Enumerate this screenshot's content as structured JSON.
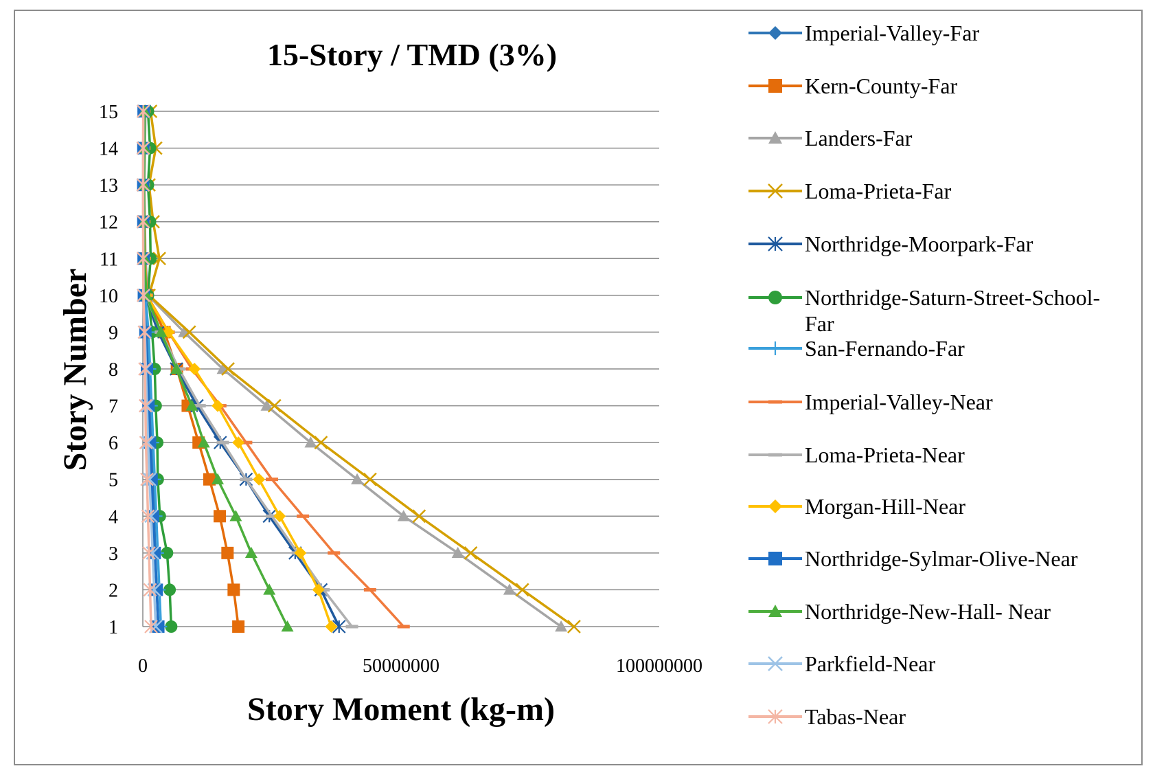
{
  "chart_data": {
    "type": "line",
    "title": "15-Story / TMD (3%)",
    "xlabel": "Story Moment (kg-m)",
    "ylabel": "Story Number",
    "xlim": [
      0,
      100000000
    ],
    "ylim": [
      1,
      15
    ],
    "x_ticks": [
      "0",
      "50000000",
      "100000000"
    ],
    "y_ticks": [
      "1",
      "2",
      "3",
      "4",
      "5",
      "6",
      "7",
      "8",
      "9",
      "10",
      "11",
      "12",
      "13",
      "14",
      "15"
    ],
    "stories": [
      1,
      2,
      3,
      4,
      5,
      6,
      7,
      8,
      9,
      10,
      11,
      12,
      13,
      14,
      15
    ],
    "grid": "horizontal",
    "legend_position": "right",
    "series": [
      {
        "name": "Imperial-Valley-Far",
        "color": "#2e75b6",
        "marker": "diamond",
        "values": [
          3000000,
          2700000,
          2400000,
          2200000,
          2000000,
          1700000,
          1500000,
          1200000,
          900000,
          300000,
          150000,
          100000,
          80000,
          100000,
          120000
        ]
      },
      {
        "name": "Kern-County-Far",
        "color": "#e46c0a",
        "marker": "square",
        "values": [
          18500000,
          17600000,
          16400000,
          14900000,
          12900000,
          10800000,
          8700000,
          6600000,
          4200000,
          900000,
          300000,
          200000,
          150000,
          200000,
          200000
        ]
      },
      {
        "name": "Landers-Far",
        "color": "#a5a5a5",
        "marker": "triangle",
        "values": [
          81000000,
          71000000,
          61000000,
          50500000,
          41500000,
          32500000,
          24000000,
          15500000,
          8000000,
          1000000,
          500000,
          400000,
          300000,
          400000,
          500000
        ]
      },
      {
        "name": "Loma-Prieta-Far",
        "color": "#d4a000",
        "marker": "x",
        "values": [
          83500000,
          73500000,
          63500000,
          53500000,
          44000000,
          34500000,
          25500000,
          16500000,
          9000000,
          1200000,
          3200000,
          2000000,
          1200000,
          2500000,
          1500000
        ]
      },
      {
        "name": "Northridge-Moorpark-Far",
        "color": "#1f5a9e",
        "marker": "asterisk",
        "values": [
          38000000,
          34500000,
          29500000,
          24500000,
          20000000,
          15000000,
          10500000,
          6500000,
          3000000,
          400000,
          200000,
          150000,
          100000,
          200000,
          300000
        ]
      },
      {
        "name": "Northridge-Saturn-Street-School-Far",
        "color": "#2e9e3a",
        "marker": "circle",
        "values": [
          5500000,
          5200000,
          4700000,
          3300000,
          2900000,
          2800000,
          2500000,
          2300000,
          1800000,
          1000000,
          1500000,
          1400000,
          1000000,
          1400000,
          1000000
        ]
      },
      {
        "name": "San-Fernando-Far",
        "color": "#3aa0dc",
        "marker": "plus",
        "values": [
          3500000,
          3200000,
          2900000,
          2600000,
          2300000,
          2000000,
          1700000,
          1400000,
          1100000,
          500000,
          300000,
          200000,
          200000,
          200000,
          200000
        ]
      },
      {
        "name": "Imperial-Valley-Near",
        "color": "#f07a3c",
        "marker": "dash",
        "values": [
          50500000,
          44000000,
          37000000,
          31000000,
          25000000,
          20000000,
          15000000,
          9500000,
          5000000,
          800000,
          400000,
          300000,
          200000,
          300000,
          300000
        ]
      },
      {
        "name": "Loma-Prieta-Near",
        "color": "#b0b0b0",
        "marker": "dash",
        "values": [
          40500000,
          35000000,
          30000000,
          25000000,
          20000000,
          15500000,
          11000000,
          7000000,
          3500000,
          600000,
          300000,
          200000,
          150000,
          200000,
          200000
        ]
      },
      {
        "name": "Morgan-Hill-Near",
        "color": "#ffc000",
        "marker": "diamond",
        "values": [
          36500000,
          34000000,
          30500000,
          26500000,
          22500000,
          18500000,
          14500000,
          10000000,
          5000000,
          700000,
          350000,
          250000,
          200000,
          250000,
          250000
        ]
      },
      {
        "name": "Northridge-Sylmar-Olive-Near",
        "color": "#1f6fc6",
        "marker": "square",
        "values": [
          3000000,
          2700000,
          2300000,
          2000000,
          1700000,
          1400000,
          1100000,
          800000,
          500000,
          200000,
          150000,
          100000,
          80000,
          100000,
          150000
        ]
      },
      {
        "name": "Northridge-New-Hall- Near",
        "color": "#4cae3c",
        "marker": "triangle",
        "values": [
          28000000,
          24500000,
          21000000,
          18000000,
          14500000,
          11800000,
          9500000,
          6500000,
          3500000,
          700000,
          300000,
          250000,
          200000,
          300000,
          300000
        ]
      },
      {
        "name": "Parkfield-Near",
        "color": "#9dc3e6",
        "marker": "x",
        "values": [
          2500000,
          2200000,
          1900000,
          1600000,
          1300000,
          1000000,
          800000,
          600000,
          400000,
          150000,
          100000,
          80000,
          60000,
          80000,
          100000
        ]
      },
      {
        "name": "Tabas-Near",
        "color": "#f4b6a4",
        "marker": "asterisk",
        "values": [
          1600000,
          1400000,
          1200000,
          1000000,
          800000,
          600000,
          500000,
          400000,
          300000,
          100000,
          80000,
          60000,
          50000,
          60000,
          80000
        ]
      }
    ]
  }
}
